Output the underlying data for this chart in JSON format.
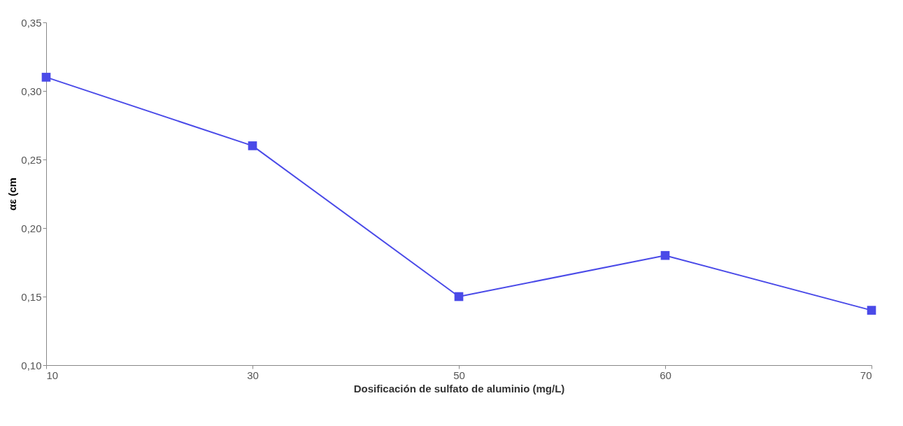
{
  "chart_data": {
    "type": "line",
    "xlabel": "Dosificación de sulfato de aluminio (mg/L)",
    "ylabel": "αε (cm",
    "categories": [
      "10",
      "30",
      "50",
      "60",
      "70"
    ],
    "series": [
      {
        "color": "#4a4ae8",
        "values": [
          0.31,
          0.26,
          0.15,
          0.18,
          0.14
        ]
      }
    ],
    "ylim": [
      0.1,
      0.35
    ],
    "yticks": [
      {
        "value": 0.1,
        "label": "0,10"
      },
      {
        "value": 0.15,
        "label": "0,15"
      },
      {
        "value": 0.2,
        "label": "0,20"
      },
      {
        "value": 0.25,
        "label": "0,25"
      },
      {
        "value": 0.3,
        "label": "0,30"
      },
      {
        "value": 0.35,
        "label": "0,35"
      }
    ],
    "marker": "square",
    "line_style": "solid",
    "grid": false,
    "legend": false
  }
}
